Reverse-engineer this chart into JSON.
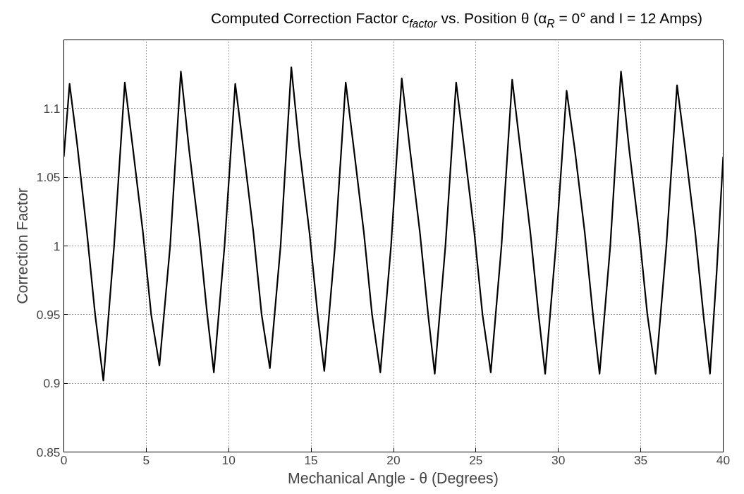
{
  "chart_data": {
    "type": "line",
    "title": "Computed Correction Factor c$_{factor}$ vs. Position θ (α$_{R}$ = 0° and I = 12 Amps)",
    "xlabel": "Mechanical Angle - θ (Degrees)",
    "ylabel": "Correction Factor",
    "x": [
      0,
      0.35,
      0.8,
      1.4,
      1.9,
      2.4,
      3.05,
      3.7,
      4.2,
      4.8,
      5.3,
      5.8,
      6.45,
      7.1,
      7.6,
      8.2,
      8.7,
      9.1,
      9.75,
      10.4,
      10.9,
      11.5,
      12.0,
      12.5,
      13.15,
      13.8,
      14.3,
      14.9,
      15.4,
      15.8,
      16.45,
      17.1,
      17.6,
      18.2,
      18.7,
      19.2,
      19.85,
      20.5,
      21.0,
      21.6,
      22.1,
      22.5,
      23.15,
      23.8,
      24.3,
      24.9,
      25.4,
      25.9,
      26.55,
      27.2,
      27.7,
      28.3,
      28.8,
      29.2,
      29.85,
      30.5,
      31.0,
      31.6,
      32.1,
      32.5,
      33.15,
      33.8,
      34.3,
      34.9,
      35.4,
      35.9,
      36.55,
      37.2,
      37.7,
      38.3,
      38.8,
      39.2,
      39.6,
      40
    ],
    "series": [
      {
        "color": "#000000",
        "values": [
          1.065,
          1.118,
          1.075,
          1.01,
          0.95,
          0.902,
          1.0,
          1.119,
          1.07,
          1.01,
          0.95,
          0.913,
          1.0,
          1.127,
          1.07,
          1.01,
          0.95,
          0.908,
          1.0,
          1.118,
          1.07,
          1.01,
          0.95,
          0.911,
          1.0,
          1.13,
          1.07,
          1.01,
          0.95,
          0.909,
          1.0,
          1.119,
          1.07,
          1.01,
          0.95,
          0.908,
          1.0,
          1.122,
          1.07,
          1.01,
          0.95,
          0.907,
          1.0,
          1.119,
          1.07,
          1.01,
          0.95,
          0.908,
          1.0,
          1.121,
          1.07,
          1.01,
          0.95,
          0.907,
          1.0,
          1.113,
          1.07,
          1.01,
          0.95,
          0.907,
          1.0,
          1.127,
          1.07,
          1.01,
          0.95,
          0.907,
          1.0,
          1.117,
          1.07,
          1.01,
          0.95,
          0.907,
          0.98,
          1.065
        ]
      }
    ],
    "xlim": [
      0,
      40
    ],
    "xticks": [
      0,
      5,
      10,
      15,
      20,
      25,
      30,
      35,
      40
    ],
    "ylim": [
      0.85,
      1.15
    ],
    "yticks": [
      0.85,
      0.9,
      0.95,
      1,
      1.05,
      1.1
    ],
    "grid": true,
    "marker": "none",
    "line_style": "solid"
  }
}
